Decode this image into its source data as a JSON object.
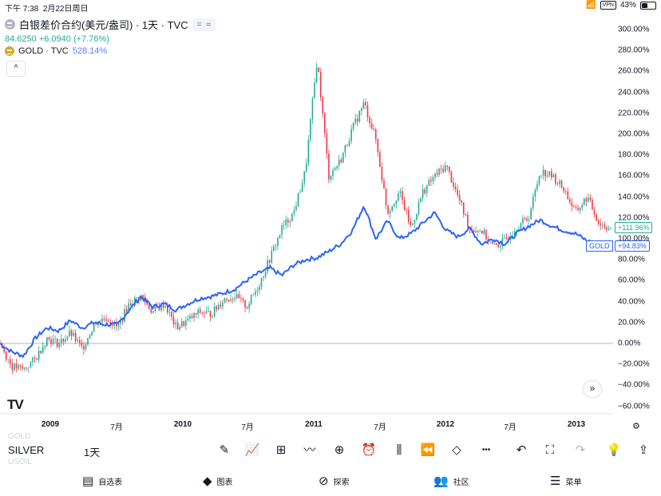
{
  "status_bar": {
    "time": "下午 7:38",
    "date": "2月22日周日",
    "vpn": "VPN",
    "battery": "43%",
    "battery_level": 0.43
  },
  "legend": {
    "main_symbol": "白银差价合约(美元/盎司) · 1天 · TVC",
    "eq_glyph": "=",
    "wave_glyph": "≈",
    "main_value": "84.6250 +6.0940 (+7.76%)",
    "compare_symbol": "GOLD · TVC",
    "compare_value": "528.14%",
    "collapse_glyph": "^"
  },
  "y_axis": {
    "labels": [
      "300.00%",
      "280.00%",
      "260.00%",
      "240.00%",
      "220.00%",
      "200.00%",
      "180.00%",
      "160.00%",
      "140.00%",
      "120.00%",
      "100.00%",
      "80.00%",
      "60.00%",
      "40.00%",
      "20.00%",
      "0.00%",
      "−20.00%",
      "−40.00%",
      "−60.00%"
    ],
    "values": [
      300,
      280,
      260,
      240,
      220,
      200,
      180,
      160,
      140,
      120,
      100,
      80,
      60,
      40,
      20,
      0,
      -20,
      -40,
      -60
    ]
  },
  "x_axis": [
    {
      "label": "2009",
      "year": true
    },
    {
      "label": "7月",
      "year": false
    },
    {
      "label": "2010",
      "year": true
    },
    {
      "label": "7月",
      "year": false
    },
    {
      "label": "2011",
      "year": true
    },
    {
      "label": "7月",
      "year": false
    },
    {
      "label": "2012",
      "year": true
    },
    {
      "label": "7月",
      "year": false
    },
    {
      "label": "2013",
      "year": true
    }
  ],
  "chart_data": {
    "type": "line",
    "title": "白银差价合约(美元/盎司) · 1天 · TVC vs GOLD · TVC",
    "ylim": [
      -60,
      300
    ],
    "series": [
      {
        "name": "SILVER (candles)",
        "x_months": [
          0,
          1,
          2,
          3,
          4,
          5,
          6,
          7,
          8,
          9,
          10,
          11,
          12,
          13,
          14,
          15,
          16,
          17,
          18,
          19,
          20,
          21,
          22,
          23,
          24,
          25,
          26,
          27,
          28,
          29,
          30,
          31,
          32,
          33,
          34,
          35,
          36,
          37,
          38,
          39,
          40,
          41,
          42,
          43,
          44,
          45,
          46,
          47,
          48,
          49,
          50,
          51,
          52
        ],
        "values": [
          0,
          -22,
          -25,
          -15,
          5,
          0,
          10,
          -5,
          18,
          25,
          15,
          38,
          45,
          30,
          38,
          15,
          22,
          30,
          28,
          42,
          45,
          35,
          55,
          82,
          110,
          125,
          165,
          272,
          160,
          175,
          205,
          230,
          195,
          125,
          145,
          110,
          145,
          160,
          170,
          140,
          110,
          108,
          92,
          98,
          112,
          120,
          165,
          160,
          148,
          125,
          140,
          115,
          110
        ]
      },
      {
        "name": "GOLD",
        "x_months": [
          0,
          1,
          2,
          3,
          4,
          5,
          6,
          7,
          8,
          9,
          10,
          11,
          12,
          13,
          14,
          15,
          16,
          17,
          18,
          19,
          20,
          21,
          22,
          23,
          24,
          25,
          26,
          27,
          28,
          29,
          30,
          31,
          32,
          33,
          34,
          35,
          36,
          37,
          38,
          39,
          40,
          41,
          42,
          43,
          44,
          45,
          46,
          47,
          48,
          49,
          50,
          51,
          52
        ],
        "values": [
          0,
          -8,
          -12,
          5,
          15,
          12,
          22,
          15,
          20,
          18,
          18,
          32,
          45,
          35,
          38,
          32,
          38,
          43,
          45,
          48,
          52,
          60,
          67,
          72,
          65,
          75,
          80,
          82,
          88,
          95,
          108,
          132,
          100,
          117,
          100,
          105,
          115,
          125,
          108,
          102,
          110,
          95,
          100,
          95,
          105,
          112,
          118,
          112,
          108,
          105,
          98,
          95,
          94.8
        ]
      }
    ],
    "last_values": {
      "silver_pct": "+111.96%",
      "gold_pct": "+94.83%",
      "gold_tag": "GOLD"
    }
  },
  "corner": {
    "logo": "TV",
    "scroll_right": "»",
    "settings": "⚙"
  },
  "toolbar": {
    "ghost_top": "GOLD",
    "ghost_bottom": "USOIL",
    "symbol": "SILVER",
    "interval": "1天",
    "icons": [
      {
        "name": "draw-pen-icon",
        "glyph": "✎"
      },
      {
        "name": "indicators-icon",
        "glyph": "📈"
      },
      {
        "name": "layout-grid-icon",
        "glyph": "⊞"
      },
      {
        "name": "chart-style-icon",
        "glyph": "〰"
      },
      {
        "name": "add-icon",
        "glyph": "⊕"
      },
      {
        "name": "alarm-icon",
        "glyph": "⏰"
      },
      {
        "name": "candles-icon",
        "glyph": "⫼"
      },
      {
        "name": "replay-icon",
        "glyph": "⏪"
      },
      {
        "name": "layers-icon",
        "glyph": "◇"
      },
      {
        "name": "more-icon",
        "glyph": "•••"
      },
      {
        "name": "undo-icon",
        "glyph": "↶"
      },
      {
        "name": "fullscreen-icon",
        "glyph": "⛶"
      },
      {
        "name": "redo-icon",
        "glyph": "↷"
      },
      {
        "name": "idea-icon",
        "glyph": "💡"
      },
      {
        "name": "share-icon",
        "glyph": "⇪"
      }
    ]
  },
  "tabs": [
    {
      "name": "tab-watchlist",
      "icon": "▤",
      "label": "自选表"
    },
    {
      "name": "tab-chart",
      "icon": "◆",
      "label": "图表"
    },
    {
      "name": "tab-explore",
      "icon": "⊘",
      "label": "探索"
    },
    {
      "name": "tab-community",
      "icon": "👥",
      "label": "社区"
    },
    {
      "name": "tab-menu",
      "icon": "☰",
      "label": "菜单"
    }
  ]
}
